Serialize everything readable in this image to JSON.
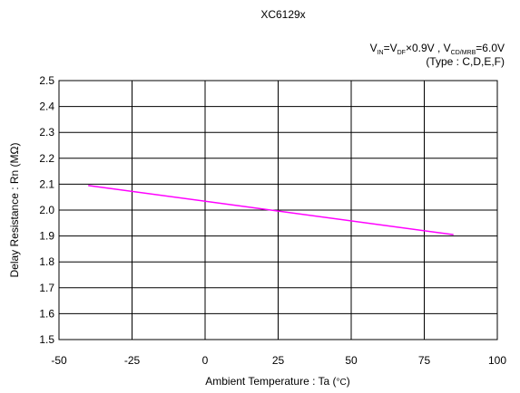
{
  "chart_data": {
    "type": "line",
    "title": "XC6129x",
    "condition": {
      "v_in": "V",
      "v_in_sub": "IN",
      "eq1": "=V",
      "v_df_sub": "DF",
      "mult": "×0.9V , V",
      "v_cd_sub": "CD/MRB",
      "eq2": "=6.0V"
    },
    "type_note": "(Type : C,D,E,F)",
    "xlabel_main": "Ambient Temperature : Ta (",
    "xlabel_unit": "°C",
    "xlabel_close": ")",
    "ylabel": "Delay Resistance : Rn (MΩ)",
    "xlim": [
      -50,
      100
    ],
    "ylim": [
      1.5,
      2.5
    ],
    "x_ticks": [
      -50,
      -25,
      0,
      25,
      50,
      75,
      100
    ],
    "x_tick_labels": [
      "-50",
      "-25",
      "0",
      "25",
      "50",
      "75",
      "100"
    ],
    "y_ticks": [
      1.5,
      1.6,
      1.7,
      1.8,
      1.9,
      2.0,
      2.1,
      2.2,
      2.3,
      2.4,
      2.5
    ],
    "y_tick_labels": [
      "1.5",
      "1.6",
      "1.7",
      "1.8",
      "1.9",
      "2.0",
      "2.1",
      "2.2",
      "2.3",
      "2.4",
      "2.5"
    ],
    "grid": true,
    "series": [
      {
        "color": "#ff00ff",
        "x": [
          -40,
          85
        ],
        "y": [
          2.095,
          1.905
        ]
      }
    ]
  }
}
